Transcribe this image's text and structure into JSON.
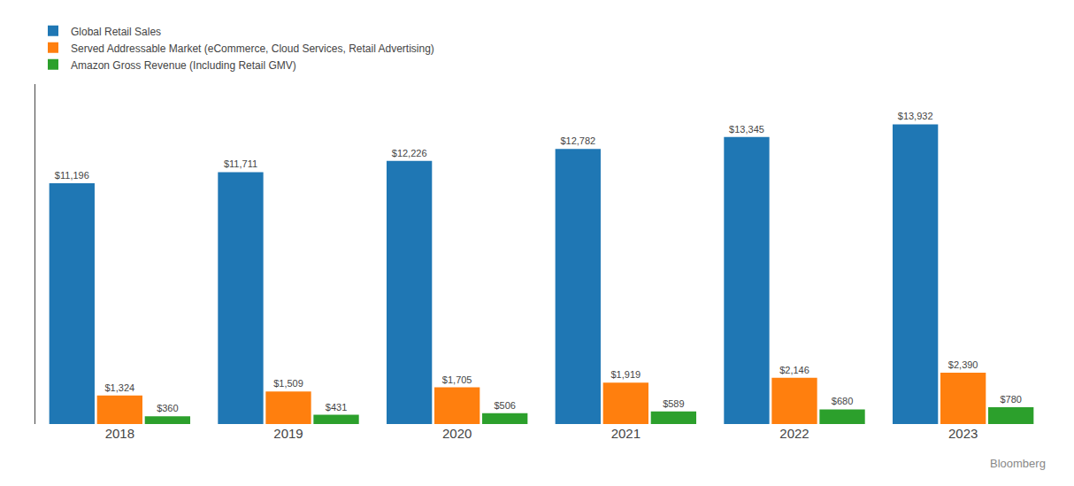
{
  "chart_data": {
    "type": "bar",
    "categories": [
      "2018",
      "2019",
      "2020",
      "2021",
      "2022",
      "2023"
    ],
    "series": [
      {
        "name": "Global Retail Sales",
        "values": [
          11196,
          11711,
          12226,
          12782,
          13345,
          13932
        ],
        "value_labels": [
          "$11,196",
          "$11,711",
          "$12,226",
          "$12,782",
          "$13,345",
          "$13,932"
        ]
      },
      {
        "name": "Served Addressable Market (eCommerce, Cloud Services, Retail Advertising)",
        "values": [
          1324,
          1509,
          1705,
          1919,
          2146,
          2390
        ],
        "value_labels": [
          "$1,324",
          "$1,509",
          "$1,705",
          "$1,919",
          "$2,146",
          "$2,390"
        ]
      },
      {
        "name": "Amazon Gross Revenue (Including Retail GMV)",
        "values": [
          360,
          431,
          506,
          589,
          680,
          780
        ],
        "value_labels": [
          "$360",
          "$431",
          "$506",
          "$589",
          "$680",
          "$780"
        ]
      }
    ],
    "ylim": [
      0,
      15800
    ],
    "tick_labels": "x",
    "grid": false,
    "legend": "top left",
    "data_labels": true,
    "annotations": [
      "Bloomberg"
    ]
  }
}
